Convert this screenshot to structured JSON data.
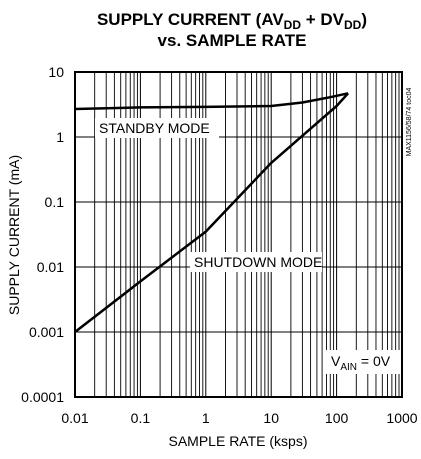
{
  "chart_data": {
    "type": "line",
    "title_line1": {
      "prefix": "SUPPLY CURRENT (AV",
      "sub1": "DD",
      "middle": " + DV",
      "sub2": "DD",
      "suffix": ")"
    },
    "title_line2": "vs. SAMPLE RATE",
    "xlabel": "SAMPLE RATE (ksps)",
    "ylabel": "SUPPLY CURRENT (mA)",
    "x_scale": "log",
    "y_scale": "log",
    "xlim": [
      0.01,
      1000
    ],
    "ylim": [
      0.0001,
      10
    ],
    "grid": true,
    "x_ticks": [
      "0.01",
      "0.1",
      "1",
      "10",
      "100",
      "1000"
    ],
    "y_ticks": [
      "10",
      "1",
      "0.1",
      "0.01",
      "0.001",
      "0.0001"
    ],
    "series": [
      {
        "label": "STANDBY MODE",
        "x": [
          0.01,
          0.1,
          1,
          10,
          30,
          80,
          150
        ],
        "y": [
          2.7,
          2.85,
          2.9,
          3.0,
          3.4,
          4.1,
          4.7
        ]
      },
      {
        "label": "SHUTDOWN MODE",
        "x": [
          0.01,
          0.1,
          1,
          10,
          100,
          150
        ],
        "y": [
          0.001,
          0.006,
          0.035,
          0.4,
          3.0,
          4.7
        ]
      }
    ],
    "annotations": {
      "standby": "STANDBY MODE",
      "shutdown": "SHUTDOWN MODE",
      "vain_prefix": "V",
      "vain_sub": "AIN",
      "vain_suffix": " = 0V"
    },
    "side_text": "MAX1156/58/74 toc04"
  }
}
